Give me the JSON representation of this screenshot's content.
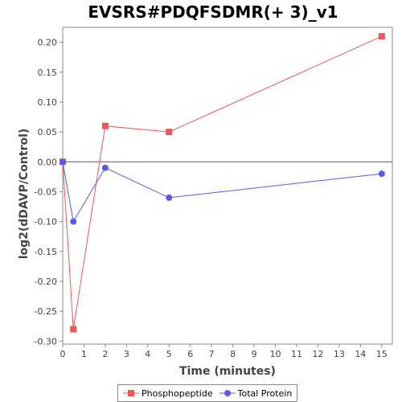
{
  "chart_data": {
    "type": "line",
    "title": "EVSRS#PDQFSDMR(+ 3)_v1",
    "xlabel": "Time (minutes)",
    "ylabel": "log2(dDAVP/Control)",
    "xlim": [
      0,
      15.5
    ],
    "ylim": [
      -0.305,
      0.225
    ],
    "xticks": [
      0,
      1,
      2,
      3,
      4,
      5,
      6,
      7,
      8,
      9,
      10,
      11,
      12,
      13,
      14,
      15
    ],
    "yticks": [
      0.2,
      0.15,
      0.1,
      0.05,
      0.0,
      -0.05,
      -0.1,
      -0.15,
      -0.2,
      -0.25,
      -0.3
    ],
    "ytick_labels": [
      "0.20",
      "0.15",
      "0.10",
      "0.05",
      "0.00",
      "-0.05",
      "-0.10",
      "-0.15",
      "-0.20",
      "-0.25",
      "-0.30"
    ],
    "zero_line": true,
    "grid": false,
    "legend_position": "bottom",
    "series": [
      {
        "name": "Phosphopeptide",
        "color": "#e8585b",
        "marker": "square",
        "x": [
          0,
          0.5,
          2,
          5,
          15
        ],
        "y": [
          0.0,
          -0.28,
          0.06,
          0.05,
          0.21
        ]
      },
      {
        "name": "Total Protein",
        "color": "#5a5ae6",
        "marker": "circle",
        "x": [
          0,
          0.5,
          2,
          5,
          15
        ],
        "y": [
          0.0,
          -0.1,
          -0.01,
          -0.06,
          -0.02
        ]
      }
    ]
  }
}
